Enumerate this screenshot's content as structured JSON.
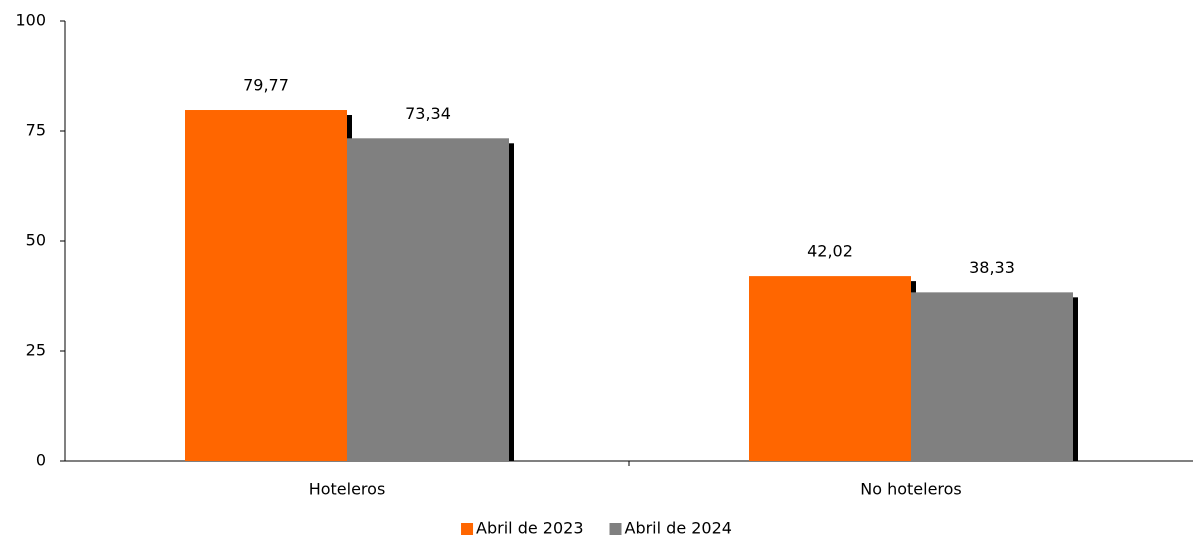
{
  "chart_data": {
    "type": "bar",
    "categories": [
      "Hoteleros",
      "No hoteleros"
    ],
    "series": [
      {
        "name": "Abril de 2023",
        "color": "#ff6600",
        "values": [
          79.77,
          42.02
        ],
        "value_labels": [
          "79,77",
          "42,02"
        ]
      },
      {
        "name": "Abril de 2024",
        "color": "#808080",
        "values": [
          73.34,
          38.33
        ],
        "value_labels": [
          "73,34",
          "38,33"
        ]
      }
    ],
    "ylim": [
      0,
      100
    ],
    "yticks": [
      0,
      25,
      50,
      75,
      100
    ],
    "grid": false,
    "legend": "bottom"
  }
}
